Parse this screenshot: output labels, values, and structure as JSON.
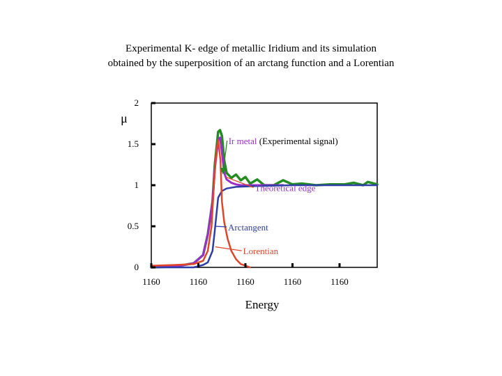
{
  "title_lines": [
    "Experimental K- edge of metallic Iridium and its simulation",
    "obtained by the superposition of an arctang function and a Lorentian"
  ],
  "chart_data": {
    "type": "line",
    "title": "Experimental K- edge of metallic Iridium and its simulation obtained by the superposition of an arctang function and a Lorentian",
    "xlabel": "Energy",
    "ylabel": "μ",
    "xlim": [
      0,
      4.8
    ],
    "ylim": [
      0,
      2
    ],
    "xticks": [
      {
        "pos": 0,
        "label": "1160"
      },
      {
        "pos": 1,
        "label": "1160"
      },
      {
        "pos": 2,
        "label": "1160"
      },
      {
        "pos": 3,
        "label": "1160"
      },
      {
        "pos": 4,
        "label": "1160"
      }
    ],
    "yticks": [
      {
        "value": 0,
        "label": "0"
      },
      {
        "value": 0.5,
        "label": "0.5"
      },
      {
        "value": 1,
        "label": "1"
      },
      {
        "value": 1.5,
        "label": "1.5"
      },
      {
        "value": 2,
        "label": "2"
      }
    ],
    "grid": false,
    "series": [
      {
        "color": "#228b22",
        "width": 3.5,
        "x": [
          0,
          0.5,
          0.9,
          1.1,
          1.2,
          1.3,
          1.35,
          1.42,
          1.46,
          1.5,
          1.55,
          1.6,
          1.7,
          1.8,
          1.9,
          2.0,
          2.1,
          2.25,
          2.4,
          2.6,
          2.8,
          3.0,
          3.2,
          3.5,
          3.8,
          4.1,
          4.3,
          4.5,
          4.6,
          4.8
        ],
        "y": [
          0.0,
          0.01,
          0.05,
          0.15,
          0.4,
          0.8,
          1.25,
          1.65,
          1.67,
          1.6,
          1.3,
          1.15,
          1.09,
          1.13,
          1.06,
          1.1,
          1.02,
          1.07,
          1.0,
          1.0,
          1.06,
          1.01,
          1.02,
          1.0,
          1.01,
          1.01,
          1.03,
          1.0,
          1.04,
          1.01
        ]
      },
      {
        "color": "#9b30c8",
        "width": 3,
        "x": [
          0,
          0.5,
          0.9,
          1.1,
          1.2,
          1.3,
          1.35,
          1.42,
          1.46,
          1.5,
          1.55,
          1.6,
          1.7,
          1.8,
          1.9,
          2.0,
          2.2,
          2.5,
          2.8
        ],
        "y": [
          0.0,
          0.01,
          0.05,
          0.15,
          0.4,
          0.8,
          1.2,
          1.55,
          1.58,
          1.4,
          1.15,
          1.07,
          1.03,
          1.01,
          1.0,
          1.0,
          1.0,
          1.0,
          1.0
        ]
      },
      {
        "color": "#2e3da8",
        "width": 2.5,
        "x": [
          0,
          0.6,
          0.9,
          1.1,
          1.2,
          1.3,
          1.35,
          1.42,
          1.5,
          1.6,
          1.8,
          2.2,
          3.0,
          4.0,
          4.8
        ],
        "y": [
          0.0,
          0.0,
          0.0,
          0.03,
          0.06,
          0.2,
          0.45,
          0.85,
          0.93,
          0.96,
          0.98,
          0.99,
          1.0,
          1.0,
          1.0
        ]
      },
      {
        "color": "#e0452a",
        "width": 2.5,
        "x": [
          0,
          0.5,
          0.9,
          1.1,
          1.2,
          1.28,
          1.33,
          1.38,
          1.42,
          1.47,
          1.5,
          1.55,
          1.62,
          1.7,
          1.8,
          1.9,
          2.0,
          2.1
        ],
        "y": [
          0.02,
          0.03,
          0.04,
          0.08,
          0.2,
          0.5,
          1.0,
          1.4,
          1.55,
          1.3,
          0.8,
          0.55,
          0.35,
          0.2,
          0.1,
          0.04,
          0.02,
          0.0
        ]
      }
    ],
    "annotations": [
      {
        "parts": [
          {
            "text": "Ir metal",
            "color": "#9b30c8"
          },
          {
            "text": " (Experimental signal)",
            "color": "#000000"
          }
        ],
        "x": 1.64,
        "y": 1.5,
        "ax": 1.52,
        "ay": 1.14,
        "color": "#228b22"
      },
      {
        "parts": [
          {
            "text": "Theoretical edge",
            "color": "#9b30c8"
          }
        ],
        "x": 2.2,
        "y": 0.93,
        "ax": 1.58,
        "ay": 1.1,
        "color": "#e0452a"
      },
      {
        "parts": [
          {
            "text": "Arctangent",
            "color": "#2e3da8"
          }
        ],
        "x": 1.63,
        "y": 0.45,
        "ax": 1.36,
        "ay": 0.5,
        "color": "#2e3da8"
      },
      {
        "parts": [
          {
            "text": "Lorentian",
            "color": "#e0452a"
          }
        ],
        "x": 1.95,
        "y": 0.16,
        "ax": 1.36,
        "ay": 0.25,
        "color": "#e0452a"
      }
    ]
  }
}
